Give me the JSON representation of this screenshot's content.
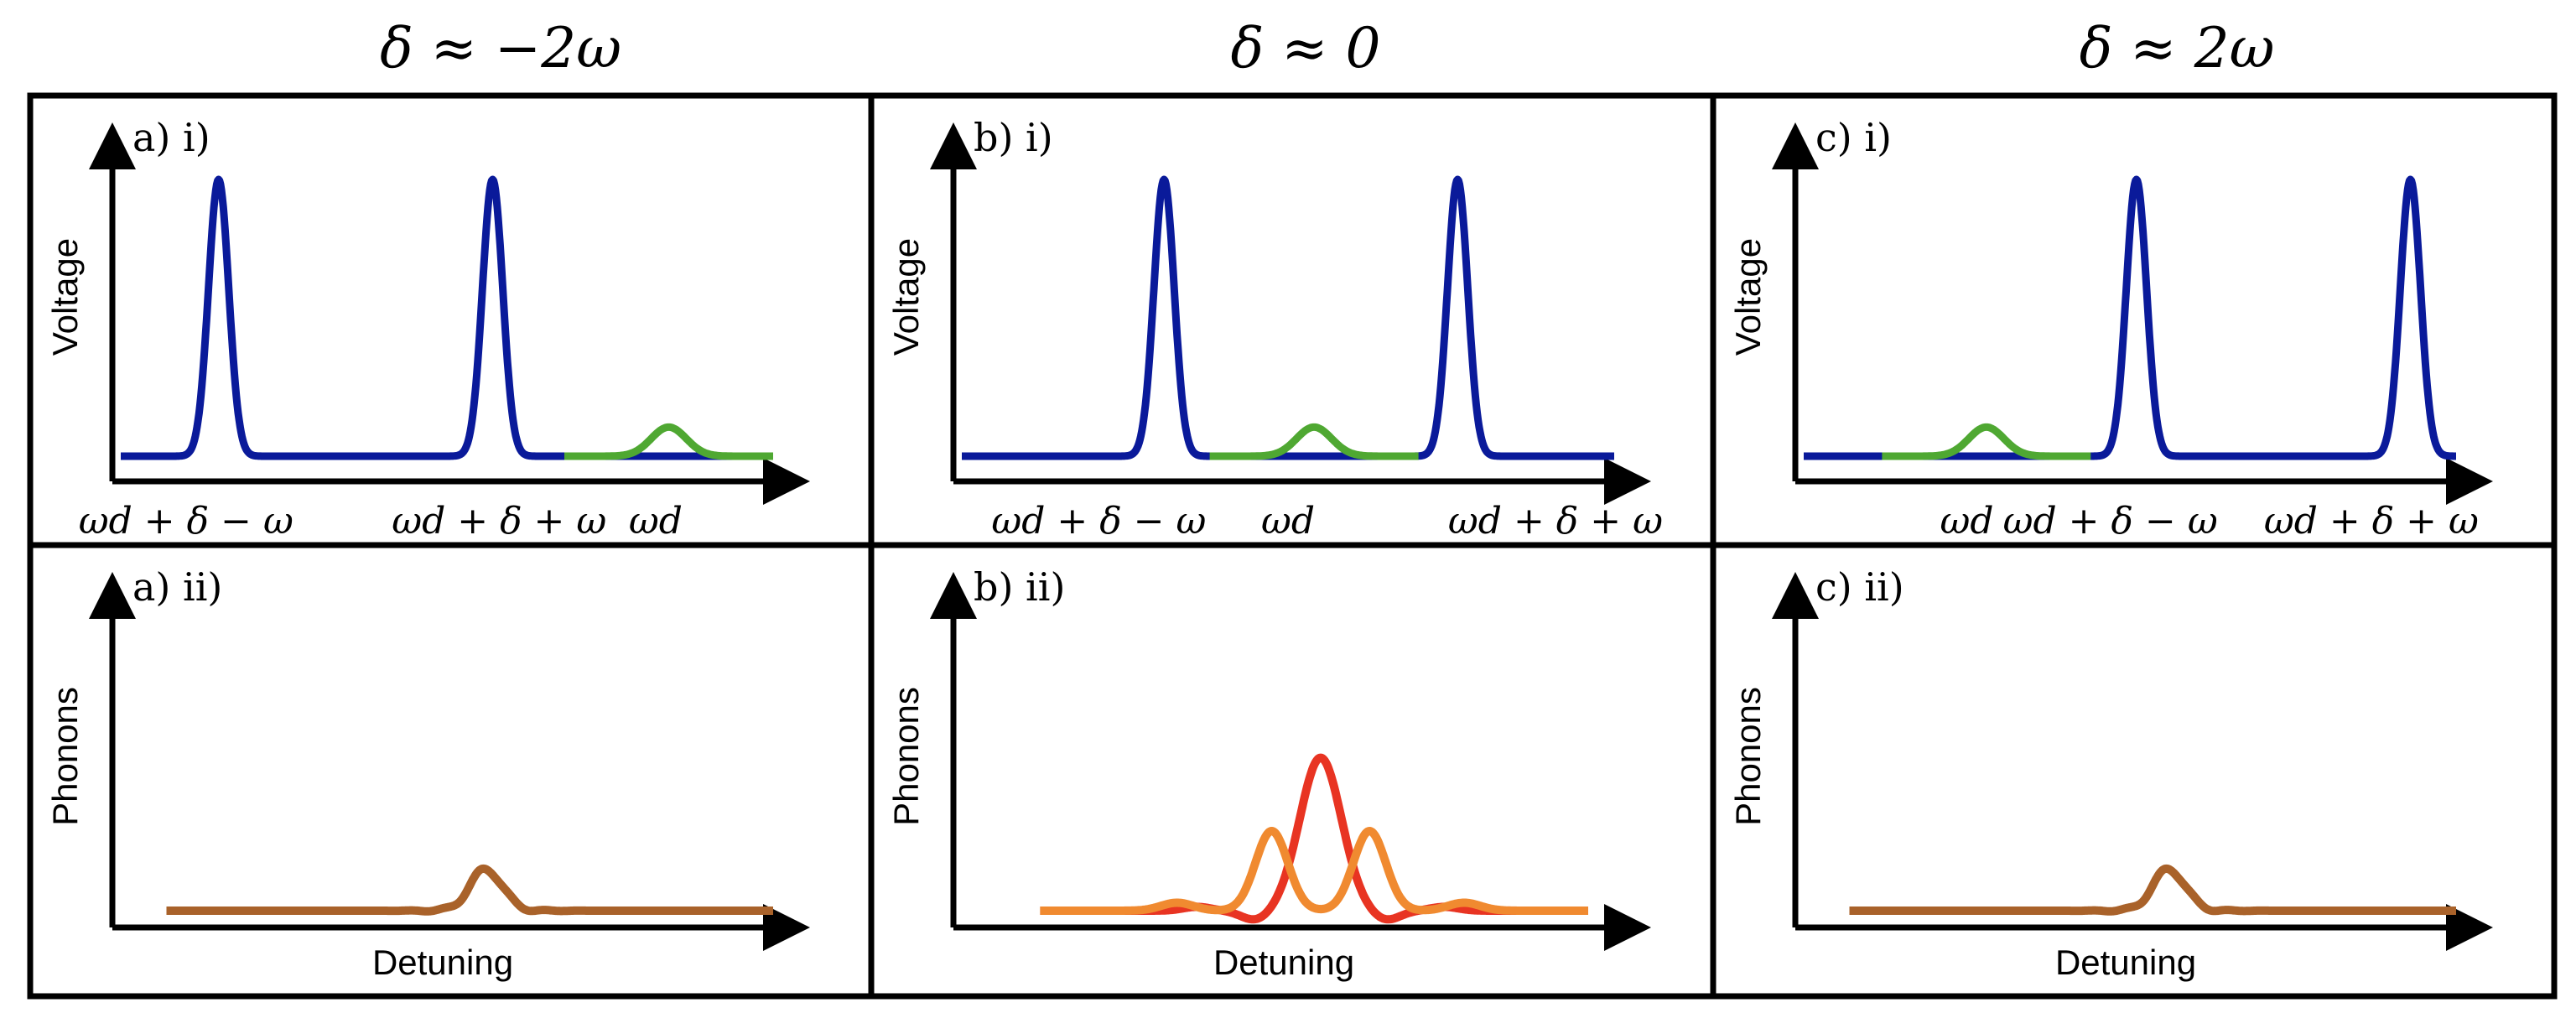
{
  "colors": {
    "voltage_drive": "#0a1a9a",
    "voltage_probe": "#4fa832",
    "phonons_single": "#a9622a",
    "phonons_red": "#e83422",
    "phonons_orange": "#f08a30",
    "frame": "#000000"
  },
  "column_headers": [
    "δ ≈ −2ω",
    "δ ≈ 0",
    "δ ≈ 2ω"
  ],
  "axis_labels": {
    "voltage": "Voltage",
    "phonons": "Phonons",
    "detuning": "Detuning"
  },
  "panels": [
    {
      "id": "a-i",
      "label": "a) i)",
      "kind": "voltage",
      "ticks": [
        "ωd + δ − ω",
        "ωd + δ + ω",
        "ωd"
      ],
      "peaks": {
        "blue": [
          0.15,
          0.57
        ],
        "green": [
          0.84
        ]
      }
    },
    {
      "id": "b-i",
      "label": "b) i)",
      "kind": "voltage",
      "ticks": [
        "ωd + δ − ω",
        "ωd",
        "ωd + δ + ω"
      ],
      "peaks": {
        "blue": [
          0.31,
          0.76
        ],
        "green": [
          0.54
        ]
      }
    },
    {
      "id": "c-i",
      "label": "c) i)",
      "kind": "voltage",
      "ticks": [
        "ωd",
        "ωd + δ − ω",
        "ωd + δ + ω"
      ],
      "peaks": {
        "blue": [
          0.51,
          0.93
        ],
        "green": [
          0.28
        ]
      }
    },
    {
      "id": "a-ii",
      "label": "a) ii)",
      "kind": "phonons",
      "curves": [
        {
          "series": "single",
          "center": 0.56
        }
      ]
    },
    {
      "id": "b-ii",
      "label": "b) ii)",
      "kind": "phonons",
      "curves": [
        {
          "series": "red",
          "center": 0.55
        },
        {
          "series": "orange",
          "center": 0.55
        }
      ]
    },
    {
      "id": "c-ii",
      "label": "c) ii)",
      "kind": "phonons",
      "curves": [
        {
          "series": "single",
          "center": 0.56
        }
      ]
    }
  ]
}
